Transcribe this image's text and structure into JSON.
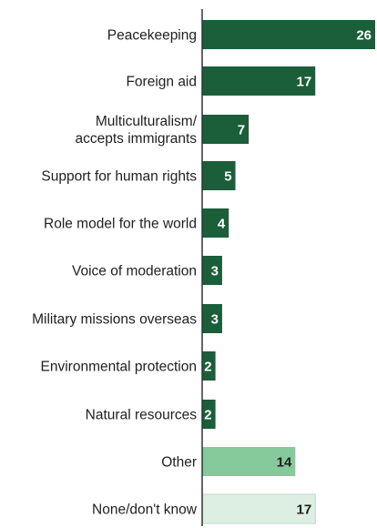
{
  "chart_data": {
    "type": "bar",
    "orientation": "horizontal",
    "title": "",
    "xlabel": "",
    "ylabel": "",
    "categories": [
      "Peacekeeping",
      "Foreign aid",
      "Multiculturalism/ accepts immigrants",
      "Support for human rights",
      "Role model for the world",
      "Voice of moderation",
      "Military missions overseas",
      "Environmental protection",
      "Natural resources",
      "Other",
      "None/don't know"
    ],
    "category_lines": [
      [
        "Peacekeeping"
      ],
      [
        "Foreign aid"
      ],
      [
        "Multiculturalism/",
        "accepts immigrants"
      ],
      [
        "Support for human rights"
      ],
      [
        "Role model for the world"
      ],
      [
        "Voice of moderation"
      ],
      [
        "Military missions overseas"
      ],
      [
        "Environmental protection"
      ],
      [
        "Natural resources"
      ],
      [
        "Other"
      ],
      [
        "None/don't know"
      ]
    ],
    "values": [
      26,
      17,
      7,
      5,
      4,
      3,
      3,
      2,
      2,
      14,
      17
    ],
    "value_labels": [
      "26",
      "17",
      "7",
      "5",
      "4",
      "3",
      "3",
      "2",
      "2",
      "14",
      "17"
    ],
    "xlim": [
      0,
      26
    ],
    "grid": false,
    "legend": "none",
    "colors": {
      "main": "#1b5e3a",
      "other": "#86c99a",
      "none": "#dcefe2",
      "axis": "#333333",
      "label_on_dark": "#ffffff",
      "label_on_light": "#1f1f1f"
    },
    "bar_color_keys": [
      "main",
      "main",
      "main",
      "main",
      "main",
      "main",
      "main",
      "main",
      "main",
      "other",
      "none"
    ]
  }
}
